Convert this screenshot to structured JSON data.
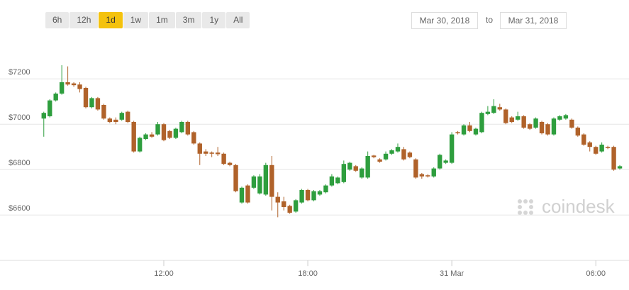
{
  "ui": {
    "ranges": [
      "6h",
      "12h",
      "1d",
      "1w",
      "1m",
      "3m",
      "1y",
      "All"
    ],
    "active_range": "1d",
    "date_from": "Mar 30, 2018",
    "date_sep": "to",
    "date_to": "Mar 31, 2018",
    "watermark": "coindesk"
  },
  "chart_data": {
    "type": "candlestick",
    "x": [
      "2018-03-30 07:00",
      "2018-03-30 07:15",
      "2018-03-30 07:30",
      "2018-03-30 07:45",
      "2018-03-30 08:00",
      "2018-03-30 08:15",
      "2018-03-30 08:30",
      "2018-03-30 08:45",
      "2018-03-30 09:00",
      "2018-03-30 09:15",
      "2018-03-30 09:30",
      "2018-03-30 09:45",
      "2018-03-30 10:00",
      "2018-03-30 10:15",
      "2018-03-30 10:30",
      "2018-03-30 10:45",
      "2018-03-30 11:00",
      "2018-03-30 11:15",
      "2018-03-30 11:30",
      "2018-03-30 11:45",
      "2018-03-30 12:00",
      "2018-03-30 12:15",
      "2018-03-30 12:30",
      "2018-03-30 12:45",
      "2018-03-30 13:00",
      "2018-03-30 13:15",
      "2018-03-30 13:30",
      "2018-03-30 13:45",
      "2018-03-30 14:00",
      "2018-03-30 14:15",
      "2018-03-30 14:30",
      "2018-03-30 14:45",
      "2018-03-30 15:00",
      "2018-03-30 15:15",
      "2018-03-30 15:30",
      "2018-03-30 15:45",
      "2018-03-30 16:00",
      "2018-03-30 16:15",
      "2018-03-30 16:30",
      "2018-03-30 16:45",
      "2018-03-30 17:00",
      "2018-03-30 17:15",
      "2018-03-30 17:30",
      "2018-03-30 17:45",
      "2018-03-30 18:00",
      "2018-03-30 18:15",
      "2018-03-30 18:30",
      "2018-03-30 18:45",
      "2018-03-30 19:00",
      "2018-03-30 19:15",
      "2018-03-30 19:30",
      "2018-03-30 19:45",
      "2018-03-30 20:00",
      "2018-03-30 20:15",
      "2018-03-30 20:30",
      "2018-03-30 20:45",
      "2018-03-30 21:00",
      "2018-03-30 21:15",
      "2018-03-30 21:30",
      "2018-03-30 21:45",
      "2018-03-30 22:00",
      "2018-03-30 22:15",
      "2018-03-30 22:30",
      "2018-03-30 22:45",
      "2018-03-30 23:00",
      "2018-03-30 23:15",
      "2018-03-30 23:30",
      "2018-03-30 23:45",
      "2018-03-31 00:00",
      "2018-03-31 00:15",
      "2018-03-31 00:30",
      "2018-03-31 00:45",
      "2018-03-31 01:00",
      "2018-03-31 01:15",
      "2018-03-31 01:30",
      "2018-03-31 01:45",
      "2018-03-31 02:00",
      "2018-03-31 02:15",
      "2018-03-31 02:30",
      "2018-03-31 02:45",
      "2018-03-31 03:00",
      "2018-03-31 03:15",
      "2018-03-31 03:30",
      "2018-03-31 03:45",
      "2018-03-31 04:00",
      "2018-03-31 04:15",
      "2018-03-31 04:30",
      "2018-03-31 04:45",
      "2018-03-31 05:00",
      "2018-03-31 05:15",
      "2018-03-31 05:30",
      "2018-03-31 05:45",
      "2018-03-31 06:00",
      "2018-03-31 06:15",
      "2018-03-31 06:30",
      "2018-03-31 06:45",
      "2018-03-31 07:00"
    ],
    "open": [
      7025,
      7035,
      7105,
      7135,
      7185,
      7180,
      7175,
      7160,
      7075,
      7115,
      7085,
      7025,
      7020,
      7020,
      7055,
      7010,
      6880,
      6935,
      6955,
      6955,
      7000,
      6970,
      6940,
      6965,
      7010,
      6965,
      6915,
      6880,
      6875,
      6875,
      6870,
      6830,
      6820,
      6655,
      6730,
      6720,
      6695,
      6690,
      6820,
      6680,
      6660,
      6640,
      6615,
      6655,
      6710,
      6665,
      6690,
      6700,
      6730,
      6740,
      6745,
      6800,
      6815,
      6765,
      6765,
      6862,
      6845,
      6845,
      6870,
      6880,
      6890,
      6875,
      6845,
      6780,
      6775,
      6770,
      6805,
      6830,
      6830,
      6965,
      6955,
      6995,
      6955,
      6965,
      7045,
      7050,
      7075,
      7065,
      7030,
      7020,
      7035,
      7000,
      6985,
      7010,
      7000,
      6955,
      7020,
      7025,
      7020,
      6985,
      6955,
      6920,
      6900,
      6880,
      6900,
      6900,
      6805
    ],
    "high": [
      7055,
      7110,
      7140,
      7260,
      7255,
      7185,
      7185,
      7165,
      7120,
      7120,
      7090,
      7030,
      7030,
      7055,
      7060,
      7015,
      6945,
      6960,
      6965,
      7010,
      7005,
      6975,
      6985,
      7015,
      7015,
      6970,
      6920,
      6890,
      6880,
      6900,
      6875,
      6835,
      6825,
      6725,
      6735,
      6775,
      6780,
      6830,
      6860,
      6700,
      6680,
      6645,
      6670,
      6715,
      6715,
      6710,
      6710,
      6735,
      6780,
      6770,
      6840,
      6835,
      6820,
      6810,
      6880,
      6865,
      6850,
      6880,
      6890,
      6915,
      6900,
      6880,
      6850,
      6785,
      6780,
      6810,
      6870,
      6845,
      6965,
      6970,
      7000,
      7010,
      6985,
      7055,
      7080,
      7110,
      7090,
      7070,
      7035,
      7055,
      7040,
      7005,
      7030,
      7015,
      7005,
      7030,
      7040,
      7045,
      7025,
      6990,
      6960,
      6925,
      6905,
      6920,
      6905,
      6905,
      6820
    ],
    "low": [
      6945,
      7030,
      7100,
      7130,
      7170,
      7165,
      7140,
      7070,
      7070,
      7060,
      7020,
      7005,
      7000,
      7015,
      7005,
      6875,
      6875,
      6930,
      6940,
      6950,
      6925,
      6935,
      6935,
      6960,
      6950,
      6910,
      6820,
      6860,
      6855,
      6860,
      6820,
      6815,
      6700,
      6650,
      6650,
      6715,
      6690,
      6685,
      6620,
      6590,
      6620,
      6605,
      6610,
      6650,
      6660,
      6660,
      6685,
      6695,
      6725,
      6735,
      6740,
      6795,
      6790,
      6760,
      6760,
      6850,
      6830,
      6840,
      6865,
      6875,
      6840,
      6850,
      6760,
      6760,
      6765,
      6765,
      6800,
      6825,
      6825,
      6955,
      6950,
      6965,
      6950,
      6960,
      7040,
      7045,
      7060,
      7000,
      7005,
      7015,
      6980,
      6975,
      6980,
      6955,
      6950,
      6950,
      7015,
      7020,
      6980,
      6945,
      6905,
      6880,
      6865,
      6875,
      6890,
      6795,
      6800
    ],
    "close": [
      7050,
      7105,
      7135,
      7185,
      7175,
      7172,
      7155,
      7075,
      7115,
      7065,
      7025,
      7010,
      7010,
      7050,
      7010,
      6880,
      6940,
      6955,
      6945,
      7000,
      6930,
      6940,
      6980,
      7010,
      6955,
      6915,
      6870,
      6870,
      6870,
      6868,
      6825,
      6820,
      6705,
      6720,
      6655,
      6770,
      6770,
      6820,
      6680,
      6655,
      6635,
      6610,
      6665,
      6710,
      6665,
      6705,
      6705,
      6730,
      6770,
      6765,
      6825,
      6830,
      6795,
      6805,
      6860,
      6855,
      6835,
      6870,
      6885,
      6900,
      6845,
      6855,
      6765,
      6770,
      6770,
      6805,
      6865,
      6840,
      6955,
      6960,
      6995,
      6970,
      6980,
      7050,
      7055,
      7080,
      7065,
      7005,
      7010,
      7035,
      6985,
      6980,
      7025,
      6960,
      6955,
      7025,
      7035,
      7040,
      6985,
      6950,
      6910,
      6900,
      6870,
      6910,
      6895,
      6800,
      6815
    ],
    "up_color": "#2e9e3e",
    "down_color": "#b0622a",
    "xlim": [
      "2018-03-30 05:30",
      "2018-03-31 07:15"
    ],
    "xticks": [
      {
        "value": "2018-03-30 12:00",
        "label": "12:00"
      },
      {
        "value": "2018-03-30 18:00",
        "label": "18:00"
      },
      {
        "value": "2018-03-31 00:00",
        "label": "31 Mar"
      },
      {
        "value": "2018-03-31 06:00",
        "label": "06:00"
      }
    ],
    "ylim": [
      6400,
      7360
    ],
    "yticks": [
      {
        "value": 6600,
        "label": "$6600"
      },
      {
        "value": 6800,
        "label": "$6800"
      },
      {
        "value": 7000,
        "label": "$7000"
      },
      {
        "value": 7200,
        "label": "$7200"
      }
    ],
    "grid": true
  }
}
